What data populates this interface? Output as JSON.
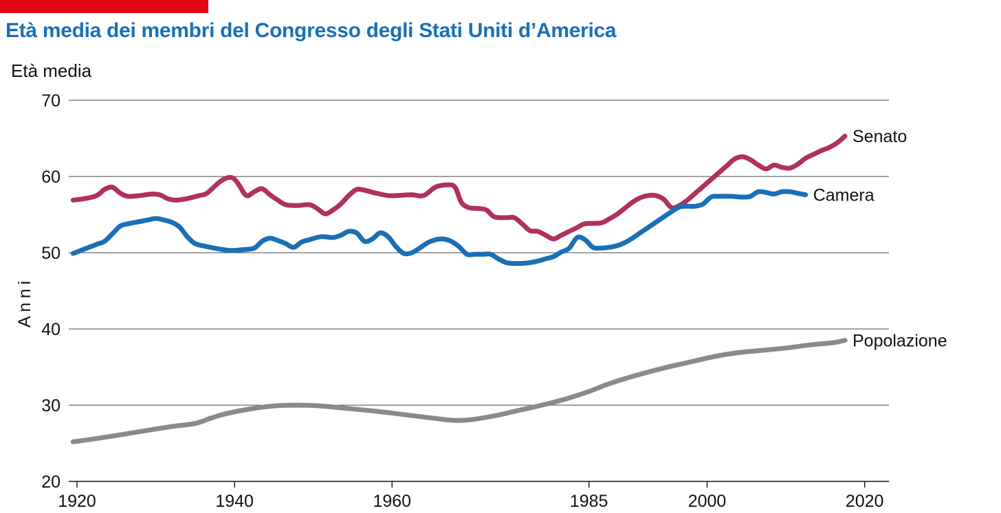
{
  "header": {
    "title": "Età media dei membri del Congresso degli Stati Uniti d’America",
    "unit_label": "Età media"
  },
  "colors": {
    "accent_bar": "#e30613",
    "title": "#1a6fb5",
    "senato": "#b03060",
    "camera": "#1a6fb5",
    "popolazione": "#8a8a8a",
    "grid": "#444444"
  },
  "chart_data": {
    "type": "line",
    "title": "Età media dei membri del Congresso degli Stati Uniti d’America",
    "ylabel": "Anni",
    "ylim": [
      20,
      70
    ],
    "xlim": [
      1920,
      2023
    ],
    "y_ticks": [
      20,
      30,
      40,
      50,
      60,
      70
    ],
    "x_ticks": [
      1920,
      1940,
      1960,
      1985,
      2000,
      2020
    ],
    "grid": "horizontal",
    "legend": "inline labels at right end of lines",
    "series": [
      {
        "name": "Senato",
        "color": "#b03060",
        "points": [
          [
            1919.5,
            56.9
          ],
          [
            1921,
            57.1
          ],
          [
            1922.5,
            57.5
          ],
          [
            1923.5,
            58.3
          ],
          [
            1924.5,
            58.6
          ],
          [
            1925.5,
            57.8
          ],
          [
            1926.5,
            57.4
          ],
          [
            1928,
            57.5
          ],
          [
            1929.5,
            57.7
          ],
          [
            1930.5,
            57.6
          ],
          [
            1931.5,
            57.1
          ],
          [
            1932.5,
            56.9
          ],
          [
            1934,
            57.1
          ],
          [
            1935.5,
            57.5
          ],
          [
            1936.5,
            57.8
          ],
          [
            1938,
            59.2
          ],
          [
            1939,
            59.8
          ],
          [
            1939.8,
            59.8
          ],
          [
            1940.5,
            59.0
          ],
          [
            1941.5,
            57.5
          ],
          [
            1942.5,
            58.0
          ],
          [
            1943.5,
            58.4
          ],
          [
            1944.5,
            57.6
          ],
          [
            1945.5,
            56.9
          ],
          [
            1946.5,
            56.3
          ],
          [
            1948,
            56.2
          ],
          [
            1949.5,
            56.3
          ],
          [
            1950.5,
            55.8
          ],
          [
            1951.5,
            55.1
          ],
          [
            1952.5,
            55.6
          ],
          [
            1953.5,
            56.4
          ],
          [
            1954.5,
            57.5
          ],
          [
            1955.5,
            58.3
          ],
          [
            1956.5,
            58.2
          ],
          [
            1958,
            57.8
          ],
          [
            1959.5,
            57.5
          ],
          [
            1960.5,
            57.5
          ],
          [
            1962.5,
            57.6
          ],
          [
            1964,
            57.5
          ],
          [
            1965.5,
            58.6
          ],
          [
            1967,
            58.9
          ],
          [
            1968,
            58.6
          ],
          [
            1968.8,
            56.6
          ],
          [
            1969.8,
            55.9
          ],
          [
            1971,
            55.8
          ],
          [
            1972,
            55.6
          ],
          [
            1973,
            54.7
          ],
          [
            1974.5,
            54.6
          ],
          [
            1975.5,
            54.6
          ],
          [
            1976.5,
            53.8
          ],
          [
            1977.5,
            52.9
          ],
          [
            1978.5,
            52.8
          ],
          [
            1979.5,
            52.3
          ],
          [
            1980.5,
            51.8
          ],
          [
            1981.5,
            52.3
          ],
          [
            1982.5,
            52.8
          ],
          [
            1983.5,
            53.3
          ],
          [
            1984.5,
            53.8
          ],
          [
            1986.5,
            53.9
          ],
          [
            1987.5,
            54.4
          ],
          [
            1988.5,
            55.0
          ],
          [
            1989.5,
            55.8
          ],
          [
            1990.5,
            56.6
          ],
          [
            1991.5,
            57.2
          ],
          [
            1992.5,
            57.5
          ],
          [
            1993.5,
            57.5
          ],
          [
            1994.5,
            57.0
          ],
          [
            1995.5,
            55.9
          ],
          [
            1996.5,
            56.2
          ],
          [
            1997.5,
            56.9
          ],
          [
            1998.5,
            57.8
          ],
          [
            1999.5,
            58.7
          ],
          [
            2000.5,
            59.6
          ],
          [
            2001.5,
            60.5
          ],
          [
            2002.5,
            61.4
          ],
          [
            2003.5,
            62.3
          ],
          [
            2004.5,
            62.6
          ],
          [
            2005.5,
            62.2
          ],
          [
            2006.5,
            61.5
          ],
          [
            2007.5,
            61.0
          ],
          [
            2008.5,
            61.5
          ],
          [
            2009.5,
            61.2
          ],
          [
            2010.5,
            61.1
          ],
          [
            2011.5,
            61.6
          ],
          [
            2012.5,
            62.4
          ],
          [
            2013.5,
            62.9
          ],
          [
            2014.5,
            63.4
          ],
          [
            2015.5,
            63.8
          ],
          [
            2016.5,
            64.4
          ],
          [
            2017.5,
            65.3
          ]
        ]
      },
      {
        "name": "Camera",
        "color": "#1a6fb5",
        "points": [
          [
            1919.5,
            49.9
          ],
          [
            1921,
            50.5
          ],
          [
            1922.5,
            51.1
          ],
          [
            1923.5,
            51.5
          ],
          [
            1924.5,
            52.5
          ],
          [
            1925.5,
            53.5
          ],
          [
            1926.5,
            53.8
          ],
          [
            1928,
            54.1
          ],
          [
            1929,
            54.3
          ],
          [
            1930,
            54.5
          ],
          [
            1931,
            54.3
          ],
          [
            1932,
            54.0
          ],
          [
            1933,
            53.4
          ],
          [
            1934,
            52.1
          ],
          [
            1935,
            51.2
          ],
          [
            1936.5,
            50.8
          ],
          [
            1938,
            50.5
          ],
          [
            1939.5,
            50.3
          ],
          [
            1941,
            50.4
          ],
          [
            1942.5,
            50.6
          ],
          [
            1943.5,
            51.5
          ],
          [
            1944.5,
            51.9
          ],
          [
            1945.5,
            51.6
          ],
          [
            1946.5,
            51.2
          ],
          [
            1947.5,
            50.7
          ],
          [
            1948.5,
            51.4
          ],
          [
            1949.5,
            51.7
          ],
          [
            1951,
            52.1
          ],
          [
            1952.5,
            52.0
          ],
          [
            1953.5,
            52.3
          ],
          [
            1954.5,
            52.8
          ],
          [
            1955.5,
            52.6
          ],
          [
            1956.5,
            51.5
          ],
          [
            1957.5,
            51.8
          ],
          [
            1958.5,
            52.6
          ],
          [
            1959.5,
            52.1
          ],
          [
            1960.5,
            50.8
          ],
          [
            1961.5,
            49.9
          ],
          [
            1962.5,
            50.0
          ],
          [
            1963.5,
            50.6
          ],
          [
            1964.5,
            51.3
          ],
          [
            1965.5,
            51.7
          ],
          [
            1966.5,
            51.8
          ],
          [
            1967.5,
            51.5
          ],
          [
            1968.5,
            50.8
          ],
          [
            1969.5,
            49.8
          ],
          [
            1970.5,
            49.8
          ],
          [
            1971.5,
            49.8
          ],
          [
            1972.5,
            49.8
          ],
          [
            1973.5,
            49.2
          ],
          [
            1974.5,
            48.7
          ],
          [
            1975.5,
            48.6
          ],
          [
            1976.5,
            48.6
          ],
          [
            1977.5,
            48.7
          ],
          [
            1978.5,
            48.9
          ],
          [
            1979.5,
            49.2
          ],
          [
            1980.5,
            49.5
          ],
          [
            1981.5,
            50.1
          ],
          [
            1982.5,
            50.6
          ],
          [
            1983.5,
            52.0
          ],
          [
            1984.5,
            51.7
          ],
          [
            1985.5,
            50.7
          ],
          [
            1986.5,
            50.6
          ],
          [
            1987.5,
            50.7
          ],
          [
            1988.5,
            50.9
          ],
          [
            1989.5,
            51.3
          ],
          [
            1990.5,
            51.9
          ],
          [
            1991.5,
            52.6
          ],
          [
            1992.5,
            53.3
          ],
          [
            1993.5,
            54.0
          ],
          [
            1994.5,
            54.7
          ],
          [
            1995.5,
            55.4
          ],
          [
            1996.5,
            56.0
          ],
          [
            1997.5,
            56.1
          ],
          [
            1998.5,
            56.1
          ],
          [
            1999.5,
            56.4
          ],
          [
            2000.5,
            57.3
          ],
          [
            2001.5,
            57.4
          ],
          [
            2003,
            57.4
          ],
          [
            2004.5,
            57.3
          ],
          [
            2005.5,
            57.4
          ],
          [
            2006.5,
            58.0
          ],
          [
            2007.5,
            57.9
          ],
          [
            2008.5,
            57.7
          ],
          [
            2009.5,
            58.0
          ],
          [
            2010.5,
            58.0
          ],
          [
            2011.5,
            57.8
          ],
          [
            2012.5,
            57.6
          ]
        ]
      },
      {
        "name": "Popolazione",
        "color": "#8a8a8a",
        "points": [
          [
            1919.5,
            25.2
          ],
          [
            1923,
            25.7
          ],
          [
            1926,
            26.2
          ],
          [
            1929,
            26.7
          ],
          [
            1932,
            27.2
          ],
          [
            1935,
            27.6
          ],
          [
            1937,
            28.3
          ],
          [
            1939,
            28.9
          ],
          [
            1942,
            29.5
          ],
          [
            1945,
            29.9
          ],
          [
            1948,
            30.0
          ],
          [
            1951,
            29.9
          ],
          [
            1954,
            29.6
          ],
          [
            1958,
            29.2
          ],
          [
            1962,
            28.7
          ],
          [
            1966,
            28.2
          ],
          [
            1968,
            28.0
          ],
          [
            1970,
            28.1
          ],
          [
            1973,
            28.6
          ],
          [
            1976,
            29.3
          ],
          [
            1979,
            30.0
          ],
          [
            1982,
            30.8
          ],
          [
            1985,
            31.8
          ],
          [
            1987,
            32.6
          ],
          [
            1989,
            33.3
          ],
          [
            1992,
            34.2
          ],
          [
            1995,
            35.0
          ],
          [
            1998,
            35.7
          ],
          [
            2001,
            36.4
          ],
          [
            2004,
            36.9
          ],
          [
            2007,
            37.2
          ],
          [
            2010,
            37.5
          ],
          [
            2013,
            37.9
          ],
          [
            2016,
            38.2
          ],
          [
            2017.5,
            38.5
          ]
        ]
      }
    ]
  }
}
